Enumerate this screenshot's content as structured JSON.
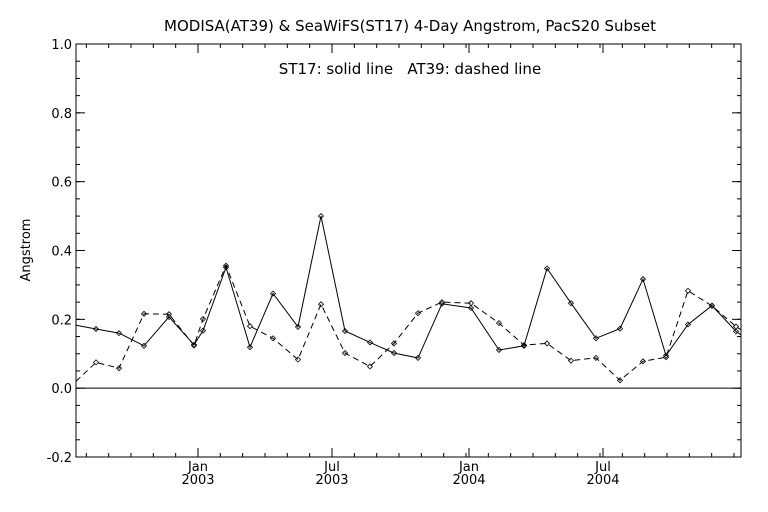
{
  "chart_data": {
    "type": "line",
    "title": "MODISA(AT39) & SeaWiFS(ST17) 4-Day Angstrom, PacS20 Subset",
    "annotation": "ST17: solid line   AT39: dashed line",
    "ylabel": "Angstrom",
    "xlabel": "",
    "xlim": [
      0,
      665
    ],
    "ylim": [
      -0.2,
      1.0
    ],
    "yticks": [
      -0.2,
      0.0,
      0.2,
      0.4,
      0.6,
      0.8,
      1.0
    ],
    "ytick_labels": [
      "-0.2",
      "0.0",
      "0.2",
      "0.4",
      "0.6",
      "0.8",
      "1.0"
    ],
    "xticks": [
      {
        "x": 122,
        "month": "Jan",
        "year": "2003"
      },
      {
        "x": 256,
        "month": "Jul",
        "year": "2003"
      },
      {
        "x": 393,
        "month": "Jan",
        "year": "2004"
      },
      {
        "x": 527,
        "month": "Jul",
        "year": "2004"
      }
    ],
    "zero_line": 0.0,
    "grid": false,
    "series": [
      {
        "name": "ST17",
        "style": "solid",
        "x": [
          0,
          20,
          43,
          68,
          93,
          118,
          127,
          150,
          174,
          197,
          222,
          245,
          269,
          294,
          318,
          342,
          366,
          395,
          423,
          448,
          471,
          495,
          520,
          544,
          567,
          590,
          612,
          636,
          660,
          665
        ],
        "y": [
          0.183,
          0.172,
          0.16,
          0.123,
          0.207,
          0.126,
          0.167,
          0.351,
          0.119,
          0.275,
          0.178,
          0.5,
          0.166,
          0.133,
          0.102,
          0.088,
          0.245,
          0.233,
          0.111,
          0.123,
          0.348,
          0.247,
          0.145,
          0.173,
          0.317,
          0.095,
          0.185,
          0.24,
          0.165,
          0.155
        ]
      },
      {
        "name": "AT39",
        "style": "dashed",
        "x": [
          0,
          20,
          43,
          68,
          93,
          118,
          127,
          150,
          174,
          197,
          222,
          245,
          269,
          294,
          318,
          342,
          366,
          395,
          423,
          448,
          471,
          495,
          520,
          544,
          567,
          590,
          612,
          636,
          660,
          665
        ],
        "y": [
          0.02,
          0.075,
          0.058,
          0.216,
          0.215,
          0.124,
          0.201,
          0.356,
          0.18,
          0.145,
          0.083,
          0.244,
          0.102,
          0.063,
          0.13,
          0.218,
          0.25,
          0.247,
          0.189,
          0.125,
          0.13,
          0.08,
          0.088,
          0.023,
          0.078,
          0.09,
          0.283,
          0.239,
          0.179,
          0.17
        ]
      }
    ]
  }
}
